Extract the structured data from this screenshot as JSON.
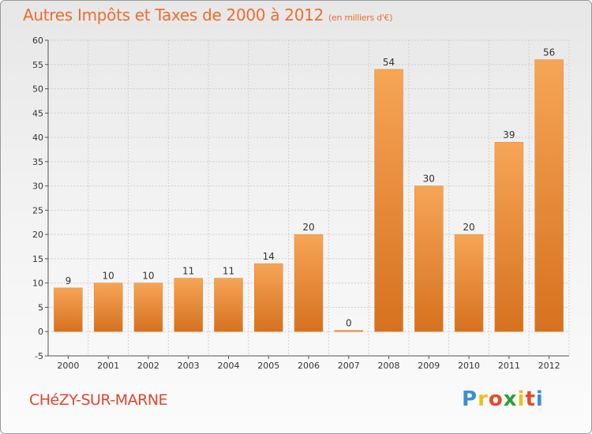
{
  "header": {
    "title": "Autres Impôts et Taxes de 2000 à 2012",
    "unit": "(en milliers d'€)"
  },
  "footer": {
    "commune": "CHéZY-SUR-MARNE",
    "logo_letters": [
      "P",
      "r",
      "o",
      "x",
      "i",
      "t",
      "i"
    ],
    "logo_colors": [
      "#3a8fd0",
      "#e8c422",
      "#e84a2a",
      "#2f9b3e",
      "#e8c422",
      "#e84a2a",
      "#3a8fd0"
    ]
  },
  "colors": {
    "bar_top": "#f6a556",
    "bar_bottom": "#d6711f",
    "grid": "#cfcfcf",
    "title": "#ee6d2f",
    "commune": "#e2452f"
  },
  "chart_data": {
    "type": "bar",
    "categories": [
      "2000",
      "2001",
      "2002",
      "2003",
      "2004",
      "2005",
      "2006",
      "2007",
      "2008",
      "2009",
      "2010",
      "2011",
      "2012"
    ],
    "values": [
      9,
      10,
      10,
      11,
      11,
      14,
      20,
      0,
      54,
      30,
      20,
      39,
      56
    ],
    "data_labels": [
      "9",
      "10",
      "10",
      "11",
      "11",
      "14",
      "20",
      "0",
      "54",
      "30",
      "20",
      "39",
      "56"
    ],
    "yticks": [
      "-5",
      "0",
      "5",
      "10",
      "15",
      "20",
      "25",
      "30",
      "35",
      "40",
      "45",
      "50",
      "55",
      "60"
    ],
    "ylim": [
      -5,
      60
    ],
    "grid": true
  }
}
